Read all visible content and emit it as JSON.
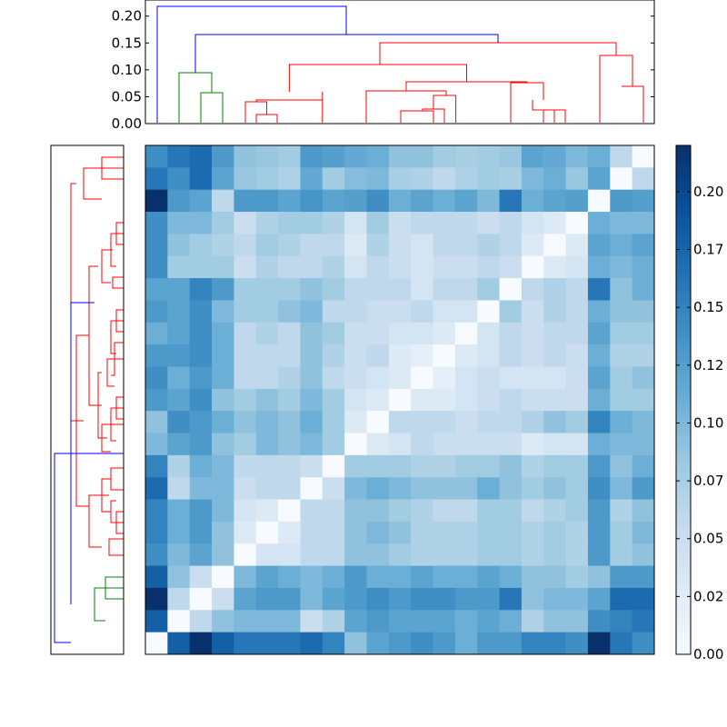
{
  "chart_data": {
    "type": "heatmap",
    "title": "",
    "xlabel": "",
    "ylabel": "",
    "colormap": "Blues",
    "colors": {
      "axes": "#000000",
      "dendro_cluster_1": "#0000ff",
      "dendro_cluster_2": "#008000",
      "dendro_cluster_3": "#ff0000"
    },
    "n": 23,
    "vmin": 0,
    "vmax": 0.22,
    "colorbar": {
      "ticks": [
        0.0,
        0.025,
        0.05,
        0.075,
        0.1,
        0.125,
        0.15,
        0.175,
        0.2
      ],
      "tick_labels": [
        "0.00",
        "0.02",
        "0.05",
        "0.07",
        "0.10",
        "0.12",
        "0.15",
        "0.17",
        "0.20"
      ],
      "position": "right"
    },
    "top_dendrogram": {
      "ylim": [
        0,
        0.23
      ],
      "ticks": [
        0.0,
        0.05,
        0.1,
        0.15,
        0.2
      ],
      "tick_labels": [
        "0.00",
        "0.05",
        "0.10",
        "0.15",
        "0.20"
      ]
    },
    "left_dendrogram": {
      "orientation": "left",
      "ticks_visible": false
    },
    "heatmap": {
      "grid": false,
      "leaves": [
        "1",
        "2",
        "3",
        "4",
        "5",
        "6",
        "7",
        "8",
        "9",
        "10",
        "11",
        "12",
        "13",
        "14",
        "15",
        "16",
        "17",
        "18",
        "19",
        "20",
        "21",
        "22",
        "23"
      ],
      "values": [
        [
          0.14,
          0.16,
          0.17,
          0.13,
          0.09,
          0.085,
          0.08,
          0.13,
          0.125,
          0.115,
          0.11,
          0.09,
          0.09,
          0.08,
          0.075,
          0.08,
          0.085,
          0.12,
          0.115,
          0.1,
          0.11,
          0.06,
          0.0
        ],
        [
          0.16,
          0.14,
          0.17,
          0.12,
          0.085,
          0.08,
          0.07,
          0.115,
          0.08,
          0.095,
          0.1,
          0.075,
          0.07,
          0.06,
          0.07,
          0.08,
          0.075,
          0.1,
          0.11,
          0.085,
          0.12,
          0.0,
          0.06
        ],
        [
          0.22,
          0.13,
          0.12,
          0.06,
          0.13,
          0.13,
          0.12,
          0.135,
          0.12,
          0.125,
          0.14,
          0.11,
          0.12,
          0.11,
          0.12,
          0.1,
          0.16,
          0.11,
          0.12,
          0.125,
          0.0,
          0.13,
          0.125
        ],
        [
          0.14,
          0.1,
          0.1,
          0.08,
          0.05,
          0.07,
          0.08,
          0.08,
          0.07,
          0.04,
          0.08,
          0.05,
          0.06,
          0.06,
          0.06,
          0.05,
          0.06,
          0.04,
          0.03,
          0.0,
          0.11,
          0.1,
          0.1
        ],
        [
          0.14,
          0.09,
          0.08,
          0.07,
          0.06,
          0.08,
          0.07,
          0.06,
          0.06,
          0.03,
          0.07,
          0.05,
          0.04,
          0.06,
          0.06,
          0.07,
          0.06,
          0.03,
          0.0,
          0.03,
          0.12,
          0.11,
          0.12
        ],
        [
          0.14,
          0.08,
          0.08,
          0.08,
          0.05,
          0.07,
          0.06,
          0.06,
          0.07,
          0.04,
          0.06,
          0.05,
          0.04,
          0.05,
          0.05,
          0.06,
          0.05,
          0.0,
          0.03,
          0.04,
          0.11,
          0.1,
          0.11
        ],
        [
          0.12,
          0.12,
          0.15,
          0.13,
          0.08,
          0.08,
          0.08,
          0.09,
          0.08,
          0.06,
          0.06,
          0.06,
          0.04,
          0.06,
          0.06,
          0.08,
          0.0,
          0.06,
          0.07,
          0.06,
          0.16,
          0.09,
          0.11
        ],
        [
          0.13,
          0.12,
          0.14,
          0.1,
          0.08,
          0.08,
          0.09,
          0.1,
          0.06,
          0.06,
          0.05,
          0.05,
          0.06,
          0.04,
          0.04,
          0.0,
          0.08,
          0.05,
          0.07,
          0.06,
          0.11,
          0.09,
          0.09
        ],
        [
          0.11,
          0.12,
          0.14,
          0.11,
          0.06,
          0.07,
          0.06,
          0.09,
          0.08,
          0.05,
          0.05,
          0.04,
          0.04,
          0.03,
          0.0,
          0.04,
          0.06,
          0.05,
          0.06,
          0.06,
          0.12,
          0.08,
          0.08
        ],
        [
          0.13,
          0.13,
          0.14,
          0.11,
          0.06,
          0.06,
          0.06,
          0.09,
          0.07,
          0.05,
          0.06,
          0.03,
          0.02,
          0.0,
          0.03,
          0.04,
          0.06,
          0.05,
          0.06,
          0.05,
          0.11,
          0.07,
          0.07
        ],
        [
          0.14,
          0.11,
          0.13,
          0.11,
          0.06,
          0.06,
          0.07,
          0.09,
          0.06,
          0.05,
          0.04,
          0.03,
          0.0,
          0.02,
          0.04,
          0.05,
          0.04,
          0.04,
          0.04,
          0.05,
          0.12,
          0.08,
          0.09
        ],
        [
          0.13,
          0.12,
          0.14,
          0.09,
          0.08,
          0.09,
          0.08,
          0.1,
          0.08,
          0.04,
          0.03,
          0.0,
          0.03,
          0.03,
          0.04,
          0.05,
          0.06,
          0.05,
          0.05,
          0.05,
          0.11,
          0.08,
          0.08
        ],
        [
          0.09,
          0.14,
          0.13,
          0.11,
          0.09,
          0.1,
          0.09,
          0.11,
          0.08,
          0.03,
          0.0,
          0.06,
          0.06,
          0.06,
          0.05,
          0.06,
          0.06,
          0.07,
          0.09,
          0.08,
          0.15,
          0.11,
          0.1
        ],
        [
          0.1,
          0.12,
          0.13,
          0.09,
          0.08,
          0.1,
          0.09,
          0.1,
          0.08,
          0.0,
          0.03,
          0.04,
          0.06,
          0.05,
          0.05,
          0.05,
          0.05,
          0.03,
          0.04,
          0.04,
          0.11,
          0.1,
          0.1
        ],
        [
          0.15,
          0.07,
          0.11,
          0.1,
          0.06,
          0.06,
          0.06,
          0.05,
          0.0,
          0.08,
          0.08,
          0.08,
          0.07,
          0.07,
          0.08,
          0.08,
          0.09,
          0.07,
          0.08,
          0.08,
          0.13,
          0.09,
          0.11
        ],
        [
          0.17,
          0.06,
          0.1,
          0.1,
          0.05,
          0.06,
          0.06,
          0.0,
          0.05,
          0.1,
          0.11,
          0.1,
          0.09,
          0.09,
          0.09,
          0.11,
          0.09,
          0.08,
          0.09,
          0.08,
          0.14,
          0.1,
          0.13
        ],
        [
          0.15,
          0.11,
          0.13,
          0.1,
          0.04,
          0.03,
          0.0,
          0.06,
          0.06,
          0.09,
          0.09,
          0.08,
          0.07,
          0.06,
          0.06,
          0.08,
          0.08,
          0.06,
          0.07,
          0.08,
          0.13,
          0.07,
          0.09
        ],
        [
          0.15,
          0.11,
          0.13,
          0.09,
          0.03,
          0.0,
          0.03,
          0.06,
          0.06,
          0.09,
          0.1,
          0.09,
          0.07,
          0.07,
          0.07,
          0.08,
          0.08,
          0.07,
          0.08,
          0.07,
          0.13,
          0.08,
          0.1
        ],
        [
          0.14,
          0.1,
          0.12,
          0.09,
          0.0,
          0.04,
          0.04,
          0.06,
          0.06,
          0.09,
          0.09,
          0.08,
          0.07,
          0.07,
          0.07,
          0.08,
          0.08,
          0.07,
          0.08,
          0.07,
          0.13,
          0.08,
          0.09
        ],
        [
          0.18,
          0.09,
          0.05,
          0.0,
          0.1,
          0.12,
          0.11,
          0.1,
          0.11,
          0.13,
          0.11,
          0.11,
          0.12,
          0.11,
          0.11,
          0.12,
          0.11,
          0.09,
          0.09,
          0.08,
          0.09,
          0.13,
          0.13
        ],
        [
          0.22,
          0.06,
          0.0,
          0.05,
          0.12,
          0.13,
          0.13,
          0.1,
          0.12,
          0.13,
          0.14,
          0.13,
          0.14,
          0.14,
          0.13,
          0.13,
          0.16,
          0.09,
          0.1,
          0.1,
          0.12,
          0.17,
          0.17
        ],
        [
          0.18,
          0.0,
          0.06,
          0.09,
          0.1,
          0.1,
          0.1,
          0.05,
          0.07,
          0.12,
          0.13,
          0.12,
          0.12,
          0.12,
          0.11,
          0.12,
          0.11,
          0.07,
          0.09,
          0.09,
          0.14,
          0.15,
          0.16
        ],
        [
          0.0,
          0.18,
          0.22,
          0.18,
          0.16,
          0.16,
          0.16,
          0.17,
          0.15,
          0.09,
          0.12,
          0.13,
          0.14,
          0.13,
          0.11,
          0.13,
          0.13,
          0.15,
          0.15,
          0.14,
          0.22,
          0.16,
          0.14
        ]
      ]
    }
  }
}
